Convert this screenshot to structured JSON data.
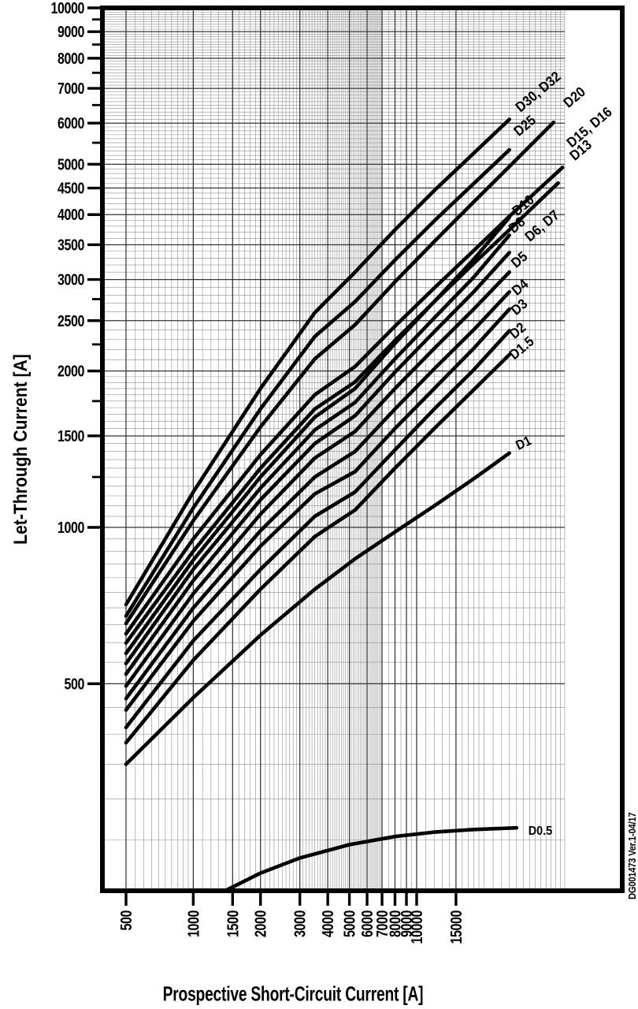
{
  "chart_data": {
    "type": "line",
    "xlabel": "Prospective Short-Circuit Current [A]",
    "ylabel": "Let-Through Current [A]",
    "watermark": "DG001473  Ver.1-04/17",
    "x_scale": "log",
    "y_scale": "log",
    "x_min": 500,
    "x_max": 46000,
    "y_min": 200,
    "y_max": 10000,
    "grid": true,
    "x_ticks": [
      500,
      1000,
      1500,
      2000,
      3000,
      4000,
      5000,
      6000,
      7000,
      8000,
      9000,
      10000,
      15000
    ],
    "y_ticks": [
      10000,
      9000,
      8000,
      7000,
      6000,
      5000,
      4500,
      4000,
      3500,
      3000,
      2500,
      2000,
      1500,
      1000,
      500
    ],
    "series": [
      {
        "name": "D30_32",
        "label": "D30, D32",
        "label_x": 687,
        "label_y": 121,
        "label_rotate": -40,
        "points": [
          [
            500,
            710
          ],
          [
            1000,
            1170
          ],
          [
            2000,
            1850
          ],
          [
            3500,
            2590
          ],
          [
            5300,
            3100
          ],
          [
            8000,
            3740
          ],
          [
            12000,
            4450
          ],
          [
            18000,
            5250
          ],
          [
            26000,
            6100
          ]
        ]
      },
      {
        "name": "D25",
        "label": "D25",
        "label_x": 670,
        "label_y": 164,
        "label_rotate": -40,
        "points": [
          [
            500,
            675
          ],
          [
            1000,
            1090
          ],
          [
            2000,
            1690
          ],
          [
            3500,
            2330
          ],
          [
            5300,
            2720
          ],
          [
            8000,
            3270
          ],
          [
            12000,
            3890
          ],
          [
            18000,
            4590
          ],
          [
            26000,
            5330
          ]
        ]
      },
      {
        "name": "D20",
        "label": "D20",
        "label_x": 733,
        "label_y": 128,
        "label_rotate": -40,
        "points": [
          [
            500,
            653
          ],
          [
            1000,
            1030
          ],
          [
            2000,
            1560
          ],
          [
            3500,
            2110
          ],
          [
            5300,
            2455
          ],
          [
            8000,
            2970
          ],
          [
            12000,
            3550
          ],
          [
            18000,
            4230
          ],
          [
            26000,
            4950
          ],
          [
            41000,
            6020
          ]
        ]
      },
      {
        "name": "D15_16",
        "label": "D15, D16",
        "label_x": 752,
        "label_y": 166,
        "label_rotate": -40,
        "points": [
          [
            500,
            624
          ],
          [
            1000,
            950
          ],
          [
            2000,
            1380
          ],
          [
            3500,
            1800
          ],
          [
            5300,
            2040
          ],
          [
            8000,
            2440
          ],
          [
            12000,
            2890
          ],
          [
            18000,
            3410
          ],
          [
            26000,
            3970
          ],
          [
            45000,
            4930
          ]
        ]
      },
      {
        "name": "D13",
        "label": "D13",
        "label_x": 741,
        "label_y": 195,
        "label_rotate": -40,
        "points": [
          [
            500,
            599
          ],
          [
            1000,
            900
          ],
          [
            2000,
            1300
          ],
          [
            3500,
            1690
          ],
          [
            5300,
            1905
          ],
          [
            8000,
            2290
          ],
          [
            12000,
            2720
          ],
          [
            18000,
            3220
          ],
          [
            26000,
            3740
          ],
          [
            43000,
            4600
          ]
        ]
      },
      {
        "name": "D10",
        "label": "D10",
        "label_x": 668,
        "label_y": 265,
        "label_rotate": -40,
        "points": [
          [
            500,
            572
          ],
          [
            1000,
            865
          ],
          [
            2000,
            1250
          ],
          [
            3500,
            1630
          ],
          [
            5300,
            1850
          ],
          [
            8000,
            2260
          ],
          [
            12000,
            2720
          ],
          [
            18000,
            3280
          ],
          [
            26000,
            3950
          ]
        ]
      },
      {
        "name": "D8",
        "label": "D8",
        "label_x": 660,
        "label_y": 290,
        "label_rotate": -40,
        "points": [
          [
            500,
            547
          ],
          [
            1000,
            830
          ],
          [
            2000,
            1190
          ],
          [
            3500,
            1540
          ],
          [
            5300,
            1740
          ],
          [
            8000,
            2110
          ],
          [
            12000,
            2530
          ],
          [
            18000,
            3030
          ],
          [
            26000,
            3650
          ]
        ]
      },
      {
        "name": "D6_7",
        "label": "D6, D7",
        "label_x": 692,
        "label_y": 291,
        "label_rotate": -40,
        "points": [
          [
            500,
            522
          ],
          [
            1000,
            790
          ],
          [
            2000,
            1130
          ],
          [
            3500,
            1450
          ],
          [
            5300,
            1640
          ],
          [
            8000,
            1990
          ],
          [
            12000,
            2380
          ],
          [
            18000,
            2840
          ],
          [
            26000,
            3380
          ]
        ]
      },
      {
        "name": "D5",
        "label": "D5",
        "label_x": 663,
        "label_y": 334,
        "label_rotate": -40,
        "points": [
          [
            500,
            495
          ],
          [
            1000,
            745
          ],
          [
            2000,
            1060
          ],
          [
            3500,
            1360
          ],
          [
            5300,
            1530
          ],
          [
            8000,
            1850
          ],
          [
            12000,
            2210
          ],
          [
            18000,
            2630
          ],
          [
            26000,
            3100
          ]
        ]
      },
      {
        "name": "D4",
        "label": "D4",
        "label_x": 664,
        "label_y": 369,
        "label_rotate": -40,
        "points": [
          [
            500,
            468
          ],
          [
            1000,
            700
          ],
          [
            2000,
            985
          ],
          [
            3500,
            1250
          ],
          [
            5300,
            1400
          ],
          [
            8000,
            1690
          ],
          [
            12000,
            2020
          ],
          [
            18000,
            2400
          ],
          [
            26000,
            2840
          ]
        ]
      },
      {
        "name": "D3",
        "label": "D3",
        "label_x": 663,
        "label_y": 394,
        "label_rotate": -40,
        "points": [
          [
            500,
            445
          ],
          [
            1000,
            660
          ],
          [
            2000,
            920
          ],
          [
            3500,
            1160
          ],
          [
            5300,
            1280
          ],
          [
            8000,
            1550
          ],
          [
            12000,
            1850
          ],
          [
            18000,
            2210
          ],
          [
            26000,
            2630
          ]
        ]
      },
      {
        "name": "D2",
        "label": "D2",
        "label_x": 661,
        "label_y": 424,
        "label_rotate": -40,
        "points": [
          [
            500,
            412
          ],
          [
            1000,
            605
          ],
          [
            2000,
            830
          ],
          [
            3500,
            1050
          ],
          [
            5300,
            1170
          ],
          [
            8000,
            1410
          ],
          [
            12000,
            1690
          ],
          [
            18000,
            2010
          ],
          [
            26000,
            2390
          ]
        ]
      },
      {
        "name": "D1_5",
        "label": "D1.5",
        "label_x": 666,
        "label_y": 446,
        "label_rotate": -40,
        "points": [
          [
            500,
            385
          ],
          [
            1000,
            555
          ],
          [
            2000,
            760
          ],
          [
            3500,
            960
          ],
          [
            5300,
            1080
          ],
          [
            8000,
            1300
          ],
          [
            12000,
            1550
          ],
          [
            18000,
            1840
          ],
          [
            26000,
            2150
          ]
        ]
      },
      {
        "name": "D1",
        "label": "D1",
        "label_x": 667,
        "label_y": 567,
        "label_rotate": -25,
        "label_size": 17,
        "points": [
          [
            500,
            350
          ],
          [
            1000,
            470
          ],
          [
            2000,
            620
          ],
          [
            3500,
            760
          ],
          [
            5300,
            870
          ],
          [
            8000,
            980
          ],
          [
            12000,
            1100
          ],
          [
            18000,
            1240
          ],
          [
            26000,
            1390
          ]
        ]
      },
      {
        "name": "D0_5",
        "label": "D0.5",
        "label_x": 686,
        "label_y": 1059,
        "label_rotate": 0,
        "label_size": 16,
        "points": [
          [
            1400,
            200
          ],
          [
            2000,
            216
          ],
          [
            3000,
            231
          ],
          [
            5000,
            245
          ],
          [
            8000,
            254
          ],
          [
            12000,
            259
          ],
          [
            18000,
            262
          ],
          [
            28000,
            264
          ]
        ]
      }
    ]
  }
}
